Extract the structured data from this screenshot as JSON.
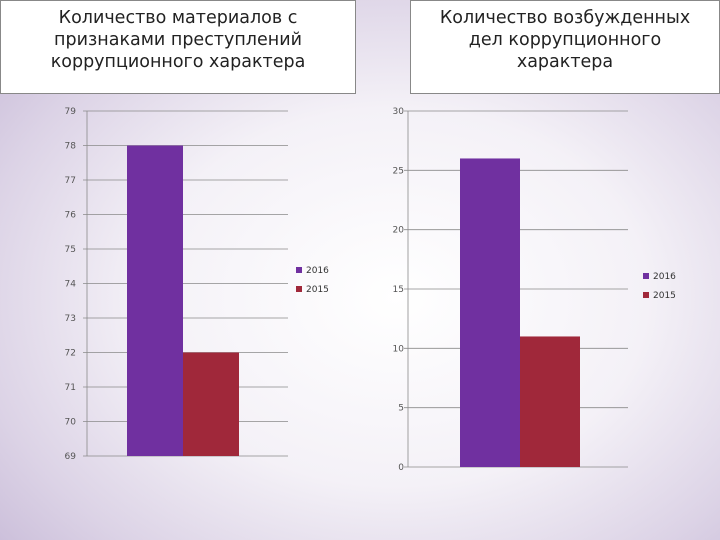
{
  "charts": [
    {
      "title_lines": [
        "Количество материалов с",
        "признаками преступлений",
        "коррупционного характера"
      ]
    },
    {
      "title_lines": [
        "Количество возбужденных",
        "дел коррупционного",
        "характера"
      ]
    }
  ],
  "chart_data": [
    {
      "type": "bar",
      "title": "Количество материалов с признаками преступлений коррупционного характера",
      "categories": [
        ""
      ],
      "series": [
        {
          "name": "2016",
          "values": [
            78
          ],
          "color": "#7030a0"
        },
        {
          "name": "2015",
          "values": [
            72
          ],
          "color": "#a0283a"
        }
      ],
      "ylim": [
        69,
        79
      ],
      "yticks": [
        69,
        70,
        71,
        72,
        73,
        74,
        75,
        76,
        77,
        78,
        79
      ],
      "grid": true,
      "legend": "right"
    },
    {
      "type": "bar",
      "title": "Количество возбужденных дел коррупционного характера",
      "categories": [
        ""
      ],
      "series": [
        {
          "name": "2016",
          "values": [
            26
          ],
          "color": "#7030a0"
        },
        {
          "name": "2015",
          "values": [
            11
          ],
          "color": "#a0283a"
        }
      ],
      "ylim": [
        0,
        30
      ],
      "yticks": [
        0,
        5,
        10,
        15,
        20,
        25,
        30
      ],
      "grid": true,
      "legend": "right"
    }
  ]
}
